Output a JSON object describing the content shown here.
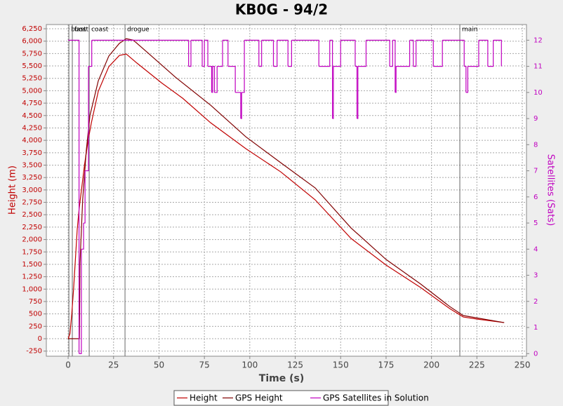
{
  "chart_data": {
    "type": "line",
    "title": "KB0G - 94/2",
    "x_label": "Time (s)",
    "y_label": "Height (m)",
    "y2_label": "Satellites (Sats)",
    "xlim": [
      -12,
      252.3
    ],
    "xticks": [
      0,
      25,
      50,
      75,
      100,
      125,
      150,
      175,
      200,
      225,
      250
    ],
    "ylim": [
      -353,
      6335
    ],
    "yticks": [
      -250,
      0,
      250,
      500,
      750,
      {
        "value": 1000,
        "label": "1,000"
      },
      {
        "value": 1250,
        "label": "1,250"
      },
      {
        "value": 1500,
        "label": "1,500"
      },
      {
        "value": 1750,
        "label": "1,750"
      },
      {
        "value": 2000,
        "label": "2,000"
      },
      {
        "value": 2250,
        "label": "2,250"
      },
      {
        "value": 2500,
        "label": "2,500"
      },
      {
        "value": 2750,
        "label": "2,750"
      },
      {
        "value": 3000,
        "label": "3,000"
      },
      {
        "value": 3250,
        "label": "3,250"
      },
      {
        "value": 3500,
        "label": "3,500"
      },
      {
        "value": 3750,
        "label": "3,750"
      },
      {
        "value": 4000,
        "label": "4,000"
      },
      {
        "value": 4250,
        "label": "4,250"
      },
      {
        "value": 4500,
        "label": "4,500"
      },
      {
        "value": 4750,
        "label": "4,750"
      },
      {
        "value": 5000,
        "label": "5,000"
      },
      {
        "value": 5250,
        "label": "5,250"
      },
      {
        "value": 5500,
        "label": "5,500"
      },
      {
        "value": 5750,
        "label": "5,750"
      },
      {
        "value": 6000,
        "label": "6,000"
      },
      {
        "value": 6250,
        "label": "6,250"
      }
    ],
    "y2lim": [
      -0.1,
      12.6
    ],
    "y2ticks": [
      0,
      1,
      2,
      3,
      4,
      5,
      6,
      7,
      8,
      9,
      10,
      11,
      12
    ],
    "grid": true,
    "legend": "bottom",
    "y_color": "#c00000",
    "y2_color": "#c000c0",
    "events": [
      {
        "label": "boost",
        "x": 0.4
      },
      {
        "label": "fast",
        "x": 2.3
      },
      {
        "label": "coast",
        "x": 11.6
      },
      {
        "label": "drogue",
        "x": 31.3
      },
      {
        "label": "main",
        "x": 215.6
      }
    ],
    "series": [
      {
        "name": "Height",
        "color": "#c00000",
        "x": [
          0,
          1,
          2,
          3,
          4,
          5,
          6,
          7,
          9,
          11,
          12.8,
          16.6,
          22.4,
          28.2,
          32,
          37.9,
          51.4,
          63,
          78.4,
          97.8,
          117,
          136,
          155.7,
          175,
          194,
          210,
          217.5,
          225,
          240
        ],
        "values": [
          0,
          100,
          500,
          1000,
          1600,
          2200,
          2600,
          2900,
          3500,
          4000,
          4355,
          4990,
          5486,
          5712,
          5740,
          5557,
          5160,
          4850,
          4355,
          3832,
          3365,
          2800,
          2022,
          1485,
          1032,
          608,
          438,
          396,
          325
        ]
      },
      {
        "name": "GPS Height",
        "color": "#800000",
        "x": [
          0,
          6.2,
          6.5,
          8,
          10,
          12,
          16.6,
          22.4,
          28.2,
          32,
          35.9,
          43.7,
          59,
          78.4,
          97.8,
          117,
          136,
          155.7,
          175,
          194,
          210,
          217.5,
          240
        ],
        "values": [
          0,
          0,
          1500,
          2800,
          3800,
          4500,
          5200,
          5700,
          5955,
          6050,
          6020,
          5770,
          5275,
          4710,
          4072,
          3549,
          3040,
          2234,
          1598,
          1103,
          650,
          467,
          325
        ]
      },
      {
        "name": "GPS Satellites in Solution",
        "color": "#c000c0",
        "axis": "y2",
        "step": "after",
        "x": [
          0,
          6,
          7.3,
          8.5,
          9.3,
          11.2,
          13,
          66.3,
          67.6,
          73.8,
          75,
          76.9,
          79,
          79.5,
          80.5,
          82,
          85,
          88,
          92,
          95,
          95.5,
          97,
          105,
          106.5,
          113,
          115,
          121,
          123,
          138,
          144,
          145.5,
          146,
          150,
          158,
          159,
          159.5,
          164,
          177,
          178.6,
          180,
          180.5,
          188,
          190,
          191.5,
          201,
          206,
          218,
          219,
          220,
          226,
          231,
          234,
          238.5
        ],
        "values": [
          12,
          0,
          4,
          5,
          7,
          11,
          12,
          11,
          12,
          11,
          12,
          11,
          10,
          11,
          10,
          11,
          12,
          11,
          10,
          9,
          10,
          12,
          11,
          12,
          11,
          12,
          11,
          12,
          11,
          12,
          9,
          11,
          12,
          11,
          9,
          11,
          12,
          11,
          12,
          10,
          11,
          12,
          11,
          12,
          11,
          12,
          11,
          10,
          11,
          12,
          11,
          12,
          11
        ]
      }
    ]
  }
}
